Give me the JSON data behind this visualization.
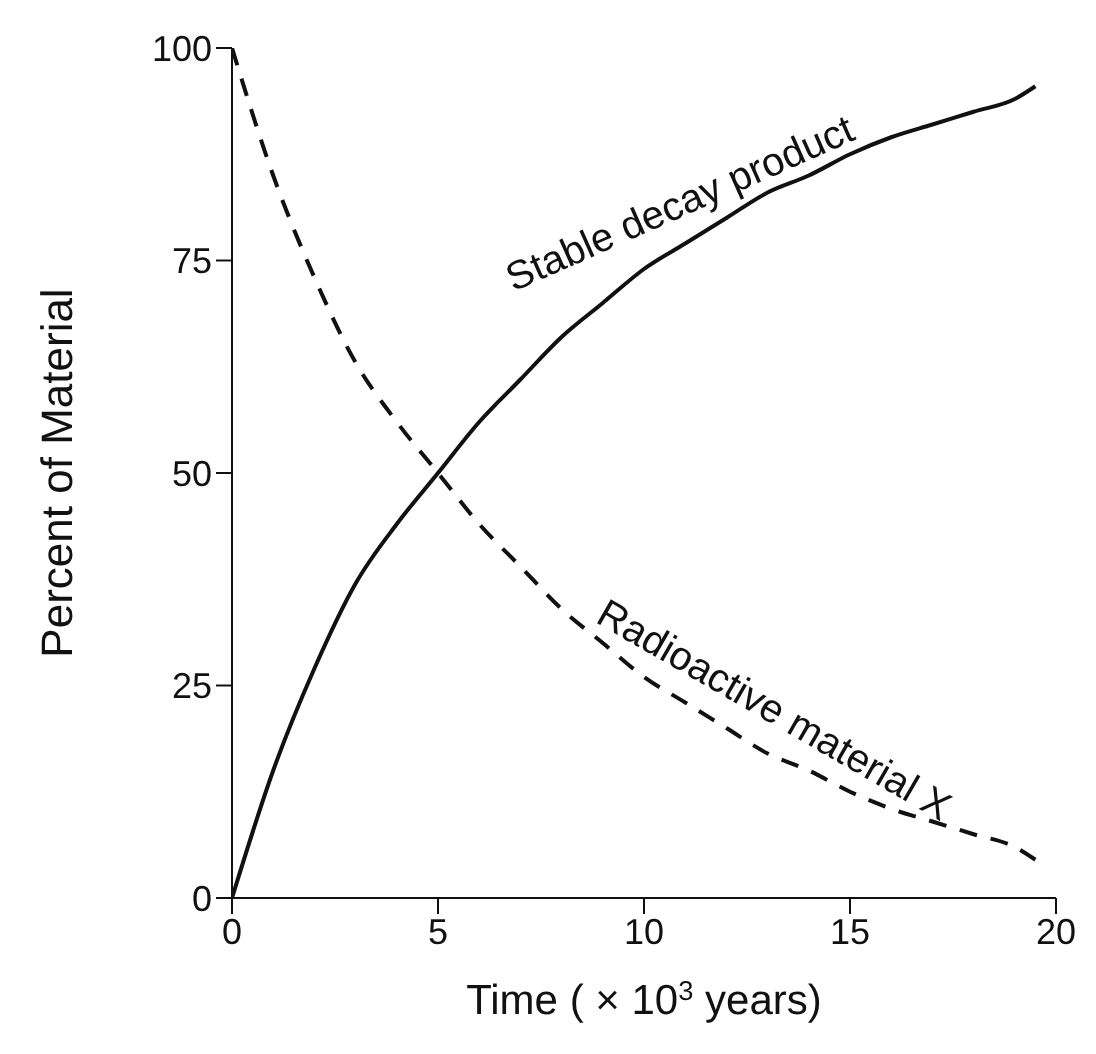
{
  "chart_data": {
    "type": "line",
    "xlabel": "Time ( × 10$^{3}$ years)",
    "ylabel": "Percent of Material",
    "xlim": [
      0,
      20
    ],
    "xticks": [
      0,
      5,
      10,
      15,
      20
    ],
    "ylim": [
      0,
      100
    ],
    "yticks": [
      0,
      25,
      50,
      75,
      100
    ],
    "grid": false,
    "legend": false,
    "marker": "none",
    "series": [
      {
        "name": "Stable decay product",
        "color": "#111111",
        "line_style": "solid",
        "x": [
          0,
          1,
          2,
          3,
          4,
          5,
          6,
          7,
          8,
          9,
          10,
          11,
          12,
          13,
          14,
          15,
          16,
          17,
          18,
          19,
          19.5
        ],
        "values": [
          0,
          15,
          27,
          37,
          44,
          50,
          56,
          61,
          66,
          70,
          74,
          77,
          80,
          83,
          85,
          87.5,
          89.5,
          91,
          92.5,
          94,
          95.5
        ]
      },
      {
        "name": "Radioactive material X",
        "color": "#111111",
        "line_style": "dashed",
        "x": [
          0,
          1,
          2,
          3,
          4,
          5,
          6,
          7,
          8,
          9,
          10,
          11,
          12,
          13,
          14,
          15,
          16,
          17,
          18,
          19,
          19.5
        ],
        "values": [
          100,
          85,
          73,
          63,
          56,
          50,
          44,
          39,
          34,
          30,
          26,
          23,
          20,
          17,
          15,
          12.5,
          10.5,
          9,
          7.5,
          6,
          4.5
        ]
      }
    ]
  }
}
